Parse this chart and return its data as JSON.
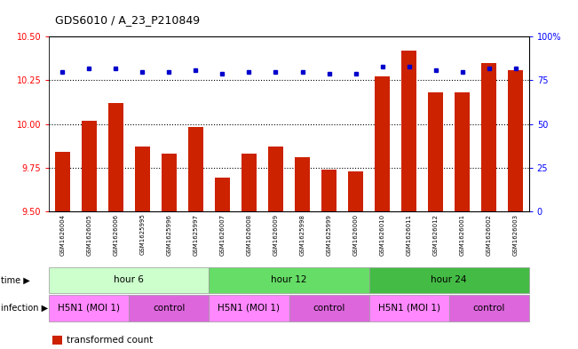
{
  "title": "GDS6010 / A_23_P210849",
  "samples": [
    "GSM1626004",
    "GSM1626005",
    "GSM1626006",
    "GSM1625995",
    "GSM1625996",
    "GSM1625997",
    "GSM1626007",
    "GSM1626008",
    "GSM1626009",
    "GSM1625998",
    "GSM1625999",
    "GSM1626000",
    "GSM1626010",
    "GSM1626011",
    "GSM1626012",
    "GSM1626001",
    "GSM1626002",
    "GSM1626003"
  ],
  "red_values": [
    9.84,
    10.02,
    10.12,
    9.87,
    9.83,
    9.98,
    9.69,
    9.83,
    9.87,
    9.81,
    9.74,
    9.73,
    10.27,
    10.42,
    10.18,
    10.18,
    10.35,
    10.31
  ],
  "blue_values": [
    80,
    82,
    82,
    80,
    80,
    81,
    79,
    80,
    80,
    80,
    79,
    79,
    83,
    83,
    81,
    80,
    82,
    82
  ],
  "ylim_left": [
    9.5,
    10.5
  ],
  "ylim_right": [
    0,
    100
  ],
  "yticks_left": [
    9.5,
    9.75,
    10.0,
    10.25,
    10.5
  ],
  "yticks_right": [
    0,
    25,
    50,
    75,
    100
  ],
  "ytick_labels_right": [
    "0",
    "25",
    "50",
    "75",
    "100%"
  ],
  "dotted_lines": [
    9.75,
    10.0,
    10.25
  ],
  "time_groups": [
    {
      "label": "hour 6",
      "start": 0,
      "end": 6,
      "color": "#ccffcc"
    },
    {
      "label": "hour 12",
      "start": 6,
      "end": 12,
      "color": "#66dd66"
    },
    {
      "label": "hour 24",
      "start": 12,
      "end": 18,
      "color": "#44bb44"
    }
  ],
  "infection_groups": [
    {
      "label": "H5N1 (MOI 1)",
      "start": 0,
      "end": 3,
      "color": "#ff88ff"
    },
    {
      "label": "control",
      "start": 3,
      "end": 6,
      "color": "#dd66dd"
    },
    {
      "label": "H5N1 (MOI 1)",
      "start": 6,
      "end": 9,
      "color": "#ff88ff"
    },
    {
      "label": "control",
      "start": 9,
      "end": 12,
      "color": "#dd66dd"
    },
    {
      "label": "H5N1 (MOI 1)",
      "start": 12,
      "end": 15,
      "color": "#ff88ff"
    },
    {
      "label": "control",
      "start": 15,
      "end": 18,
      "color": "#dd66dd"
    }
  ],
  "bar_color": "#cc2200",
  "dot_color": "#0000cc",
  "bar_width": 0.55,
  "background_color": "#ffffff"
}
